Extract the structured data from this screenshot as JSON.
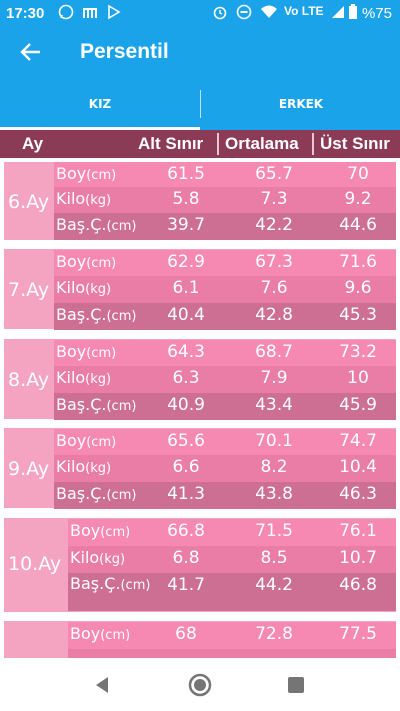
{
  "status_bar": {
    "time": "17:30",
    "network_text": "Vo LTE",
    "battery": "%75",
    "icons": [
      "whatsapp-icon",
      "m-app-icon",
      "play-icon",
      "alarm-icon",
      "dnd-icon",
      "wifi-icon",
      "signal-icon",
      "battery-icon"
    ]
  },
  "app_bar": {
    "title": "Persentil",
    "back_icon": "arrow-left-icon"
  },
  "tabs": [
    {
      "label": "KIZ",
      "selected": true
    },
    {
      "label": "ERKEK",
      "selected": false
    }
  ],
  "table": {
    "headers": {
      "ay": "Ay",
      "alt": "Alt Sınır",
      "ort": "Ortalama",
      "ust": "Üst Sınır"
    },
    "groups": [
      {
        "ay": "6.Ay",
        "rows": [
          {
            "label": "Boy",
            "unit": "(cm)",
            "alt": "61.5",
            "ort": "65.7",
            "ust": "70"
          },
          {
            "label": "Kilo",
            "unit": "(kg)",
            "alt": "5.8",
            "ort": "7.3",
            "ust": "9.2"
          },
          {
            "label": "Baş.Ç.",
            "unit": "(cm)",
            "alt": "39.7",
            "ort": "42.2",
            "ust": "44.6"
          }
        ]
      },
      {
        "ay": "7.Ay",
        "rows": [
          {
            "label": "Boy",
            "unit": "(cm)",
            "alt": "62.9",
            "ort": "67.3",
            "ust": "71.6"
          },
          {
            "label": "Kilo",
            "unit": "(kg)",
            "alt": "6.1",
            "ort": "7.6",
            "ust": "9.6"
          },
          {
            "label": "Baş.Ç.",
            "unit": "(cm)",
            "alt": "40.4",
            "ort": "42.8",
            "ust": "45.3"
          }
        ]
      },
      {
        "ay": "8.Ay",
        "rows": [
          {
            "label": "Boy",
            "unit": "(cm)",
            "alt": "64.3",
            "ort": "68.7",
            "ust": "73.2"
          },
          {
            "label": "Kilo",
            "unit": "(kg)",
            "alt": "6.3",
            "ort": "7.9",
            "ust": "10"
          },
          {
            "label": "Baş.Ç.",
            "unit": "(cm)",
            "alt": "40.9",
            "ort": "43.4",
            "ust": "45.9"
          }
        ]
      },
      {
        "ay": "9.Ay",
        "rows": [
          {
            "label": "Boy",
            "unit": "(cm)",
            "alt": "65.6",
            "ort": "70.1",
            "ust": "74.7"
          },
          {
            "label": "Kilo",
            "unit": "(kg)",
            "alt": "6.6",
            "ort": "8.2",
            "ust": "10.4"
          },
          {
            "label": "Baş.Ç.",
            "unit": "(cm)",
            "alt": "41.3",
            "ort": "43.8",
            "ust": "46.3"
          }
        ]
      },
      {
        "ay": "10.Ay",
        "rows": [
          {
            "label": "Boy",
            "unit": "(cm)",
            "alt": "66.8",
            "ort": "71.5",
            "ust": "76.1"
          },
          {
            "label": "Kilo",
            "unit": "(kg)",
            "alt": "6.8",
            "ort": "8.5",
            "ust": "10.7"
          },
          {
            "label": "Baş.Ç.",
            "unit": "(cm)",
            "alt": "41.7",
            "ort": "44.2",
            "ust": "46.8"
          }
        ]
      },
      {
        "ay": "",
        "rows": [
          {
            "label": "Boy",
            "unit": "(cm)",
            "alt": "68",
            "ort": "72.8",
            "ust": "77.5"
          }
        ]
      }
    ]
  },
  "nav_bar": {
    "icons": [
      "back-triangle-icon",
      "home-circle-icon",
      "recents-square-icon"
    ]
  },
  "colors": {
    "primary": "#1aa3e8",
    "header_row": "#8c3b56",
    "row_light": "#f589b1",
    "row_mid": "#e97da6",
    "row_dark": "#cd6f93",
    "group_bg": "#f4a3c1"
  }
}
